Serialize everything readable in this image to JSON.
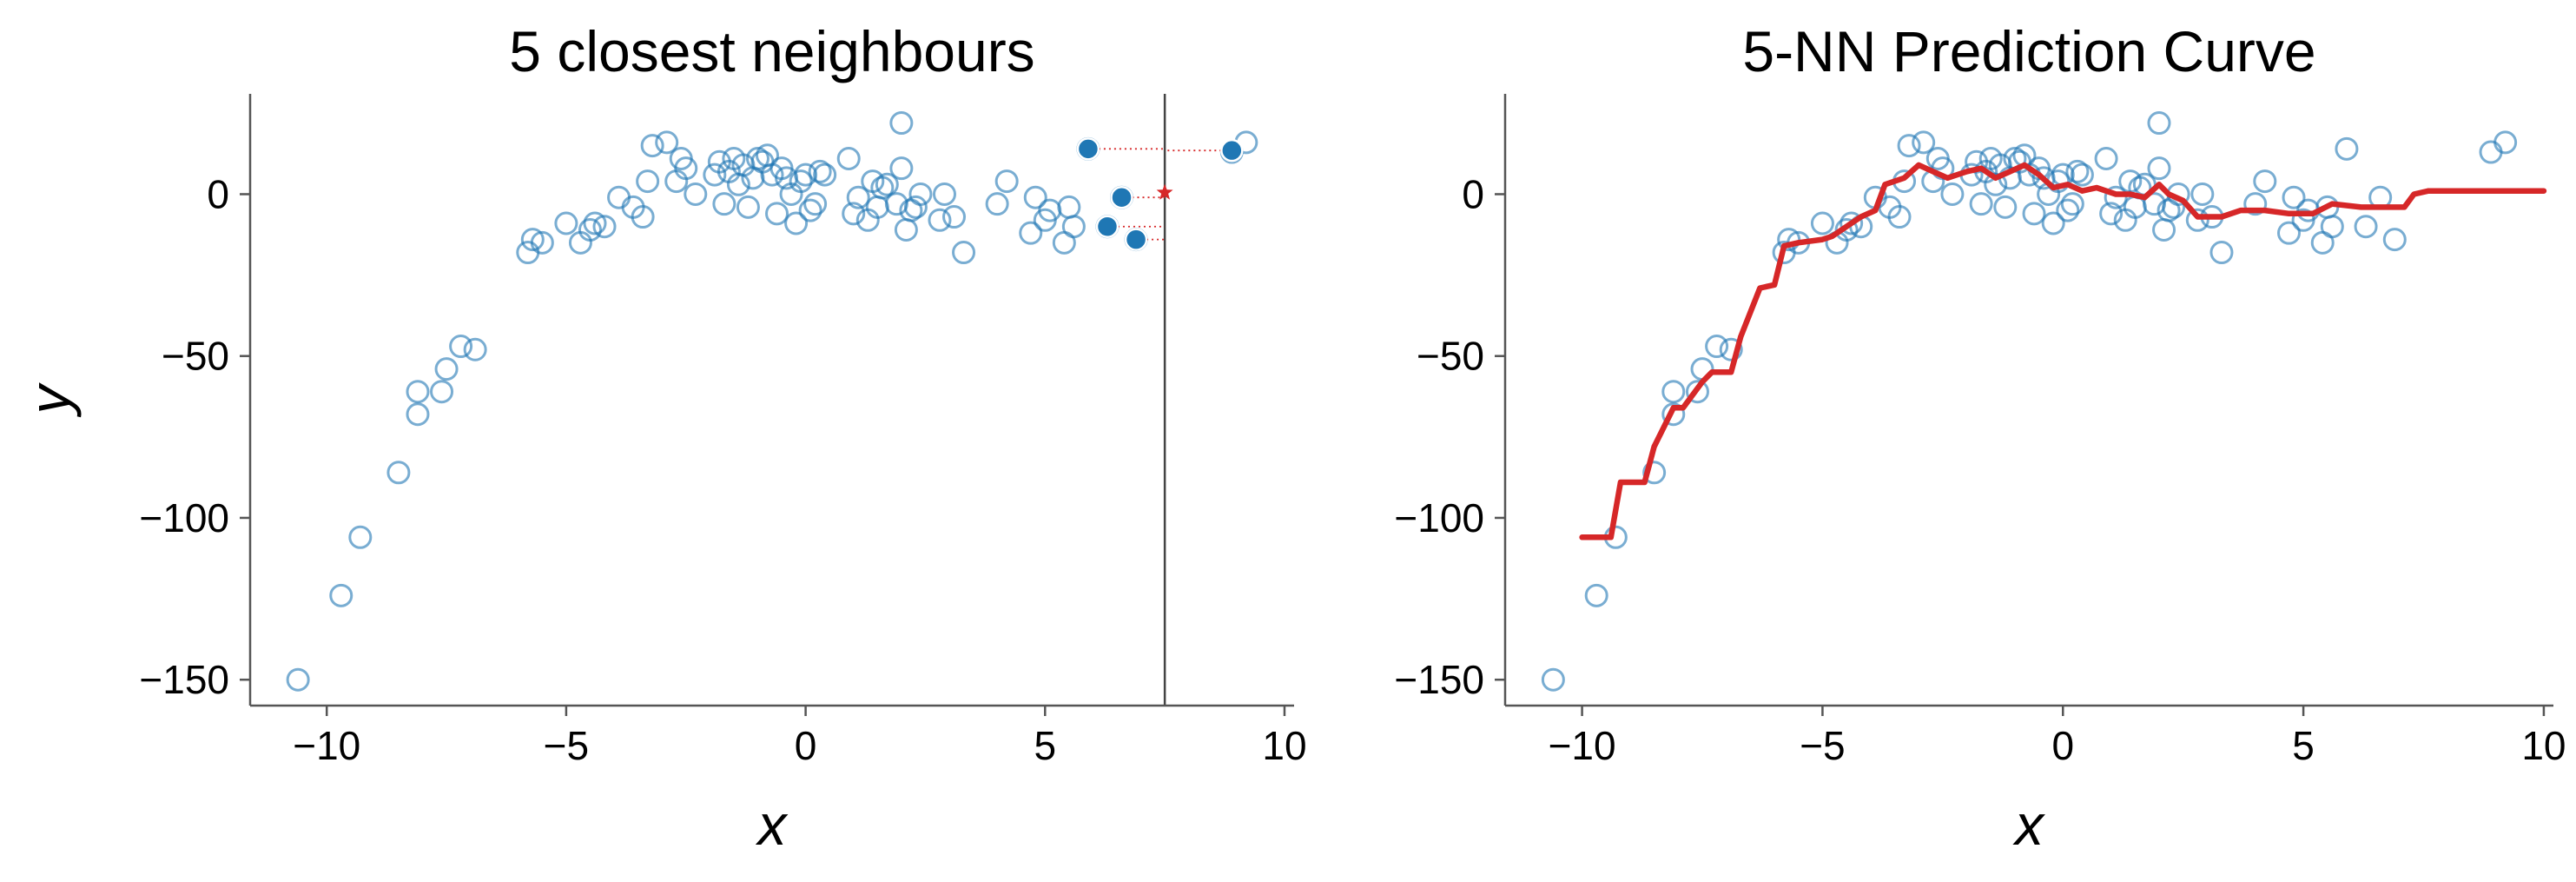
{
  "chart_data": [
    {
      "type": "scatter",
      "title": "5 closest neighbours",
      "xlabel": "x",
      "ylabel": "y",
      "xlim": [
        -11.6,
        10.2
      ],
      "ylim": [
        -158,
        31
      ],
      "xticks": [
        -10,
        -5,
        0,
        5,
        10
      ],
      "xtick_labels": [
        "−10",
        "−5",
        "0",
        "5",
        "10"
      ],
      "yticks": [
        -150,
        -100,
        -50,
        0
      ],
      "ytick_labels": [
        "−150",
        "−100",
        "−50",
        "0"
      ],
      "grid": false,
      "query_x": 7.5,
      "query_prediction": 0.5,
      "neighbours": [
        {
          "x": 5.9,
          "y": 14
        },
        {
          "x": 6.6,
          "y": -1
        },
        {
          "x": 6.3,
          "y": -10
        },
        {
          "x": 6.9,
          "y": -14
        },
        {
          "x": 8.9,
          "y": 13.5
        }
      ],
      "colors": {
        "points": "#1f77b4",
        "prediction": "#d62728",
        "query_line": "#444444"
      }
    },
    {
      "type": "line",
      "title": "5-NN Prediction Curve",
      "xlabel": "x",
      "ylabel": "",
      "xlim": [
        -11.6,
        10.2
      ],
      "ylim": [
        -158,
        31
      ],
      "xticks": [
        -10,
        -5,
        0,
        5,
        10
      ],
      "xtick_labels": [
        "−10",
        "−5",
        "0",
        "5",
        "10"
      ],
      "yticks": [
        -150,
        -100,
        -50,
        0
      ],
      "ytick_labels": [
        "−150",
        "−100",
        "−50",
        "0"
      ],
      "grid": false,
      "curve": {
        "x": [
          -10,
          -9.4,
          -9.2,
          -8.7,
          -8.5,
          -8.1,
          -7.9,
          -7.5,
          -7.3,
          -6.9,
          -6.7,
          -6.3,
          -6.0,
          -5.8,
          -5.5,
          -5.0,
          -4.8,
          -4.5,
          -4.2,
          -3.9,
          -3.7,
          -3.3,
          -3.0,
          -2.7,
          -2.4,
          -2.0,
          -1.7,
          -1.4,
          -1.1,
          -0.8,
          -0.5,
          -0.2,
          0.1,
          0.4,
          0.7,
          1.1,
          1.4,
          1.7,
          2.0,
          2.2,
          2.5,
          2.8,
          3.3,
          3.7,
          4.2,
          4.7,
          5.2,
          5.6,
          6.2,
          6.8,
          7.1,
          7.3,
          7.6,
          8.5,
          9.0,
          10.0
        ],
        "y": [
          -106,
          -106,
          -89,
          -89,
          -78,
          -66,
          -66,
          -58,
          -55,
          -55,
          -44,
          -29,
          -28,
          -16,
          -15,
          -14,
          -13,
          -10,
          -7,
          -5,
          3,
          5,
          9,
          7,
          5,
          7,
          8,
          5,
          7,
          9,
          6,
          2,
          3,
          1,
          2,
          0,
          0,
          -1,
          3,
          0,
          -2,
          -7,
          -7,
          -5,
          -5,
          -6,
          -6,
          -3,
          -4,
          -4,
          -4,
          0,
          1,
          1,
          1,
          1
        ]
      },
      "colors": {
        "points": "#1f77b4",
        "curve": "#d62728"
      }
    }
  ],
  "data_points": {
    "x": [
      -10.6,
      -9.7,
      -9.3,
      -8.5,
      -8.1,
      -8.1,
      -7.6,
      -7.5,
      -7.2,
      -6.9,
      -5.8,
      -5.7,
      -5.5,
      -5.0,
      -4.7,
      -4.5,
      -4.4,
      -4.2,
      -3.9,
      -3.6,
      -3.4,
      -3.3,
      -3.2,
      -2.9,
      -2.7,
      -2.6,
      -2.5,
      -2.3,
      -1.9,
      -1.8,
      -1.7,
      -1.6,
      -1.5,
      -1.4,
      -1.3,
      -1.2,
      -1.1,
      -1.0,
      -0.9,
      -0.8,
      -0.7,
      -0.6,
      -0.5,
      -0.4,
      -0.3,
      -0.2,
      -0.1,
      0.0,
      0.1,
      0.2,
      0.3,
      0.4,
      0.9,
      1.0,
      1.1,
      1.3,
      1.4,
      1.5,
      1.6,
      1.7,
      1.9,
      2.0,
      2.0,
      2.1,
      2.2,
      2.3,
      2.4,
      2.8,
      2.9,
      3.1,
      3.3,
      4.0,
      4.2,
      4.7,
      4.8,
      5.0,
      5.1,
      5.4,
      5.5,
      5.6,
      5.9,
      6.3,
      6.6,
      6.9,
      8.9,
      9.2
    ],
    "y": [
      -150,
      -124,
      -106,
      -86,
      -68,
      -61,
      -61,
      -54,
      -47,
      -48,
      -18,
      -14,
      -15,
      -9,
      -15,
      -11,
      -9,
      -10,
      -1,
      -4,
      -7,
      4,
      15,
      16,
      4,
      11,
      8,
      0,
      6,
      10,
      -3,
      7,
      11,
      3,
      9,
      -4,
      5,
      11,
      10,
      12,
      6,
      -6,
      8,
      5,
      0,
      -9,
      4,
      6,
      -5,
      -3,
      7,
      6,
      11,
      -6,
      -1,
      -8,
      4,
      -4,
      2,
      3,
      -3,
      22,
      8,
      -11,
      -5,
      -4,
      0,
      -8,
      0,
      -7,
      -18,
      -3,
      4,
      -12,
      -1,
      -8,
      -5,
      -15,
      -4,
      -10,
      14,
      -10,
      -1,
      -14,
      13,
      16
    ]
  }
}
